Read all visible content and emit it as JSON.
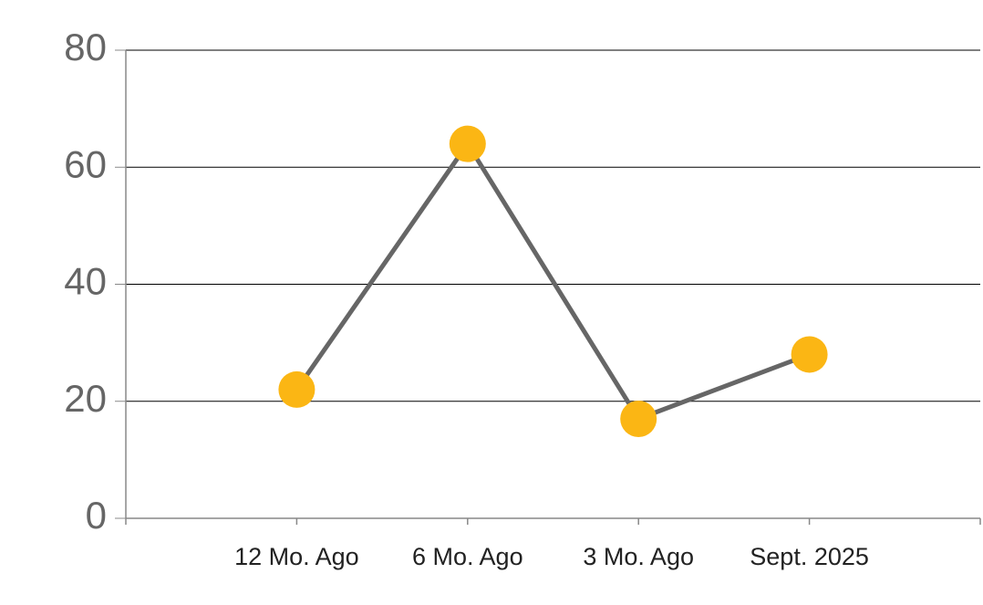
{
  "chart_data": {
    "type": "line",
    "categories": [
      "12 Mo. Ago",
      "6 Mo. Ago",
      "3 Mo. Ago",
      "Sept. 2025"
    ],
    "values": [
      22,
      64,
      17,
      28
    ],
    "line_color": "#666666",
    "marker_color": "#fbb614",
    "ylim": [
      0,
      80
    ],
    "yticks": [
      0,
      20,
      40,
      60,
      80
    ],
    "grid": true
  }
}
